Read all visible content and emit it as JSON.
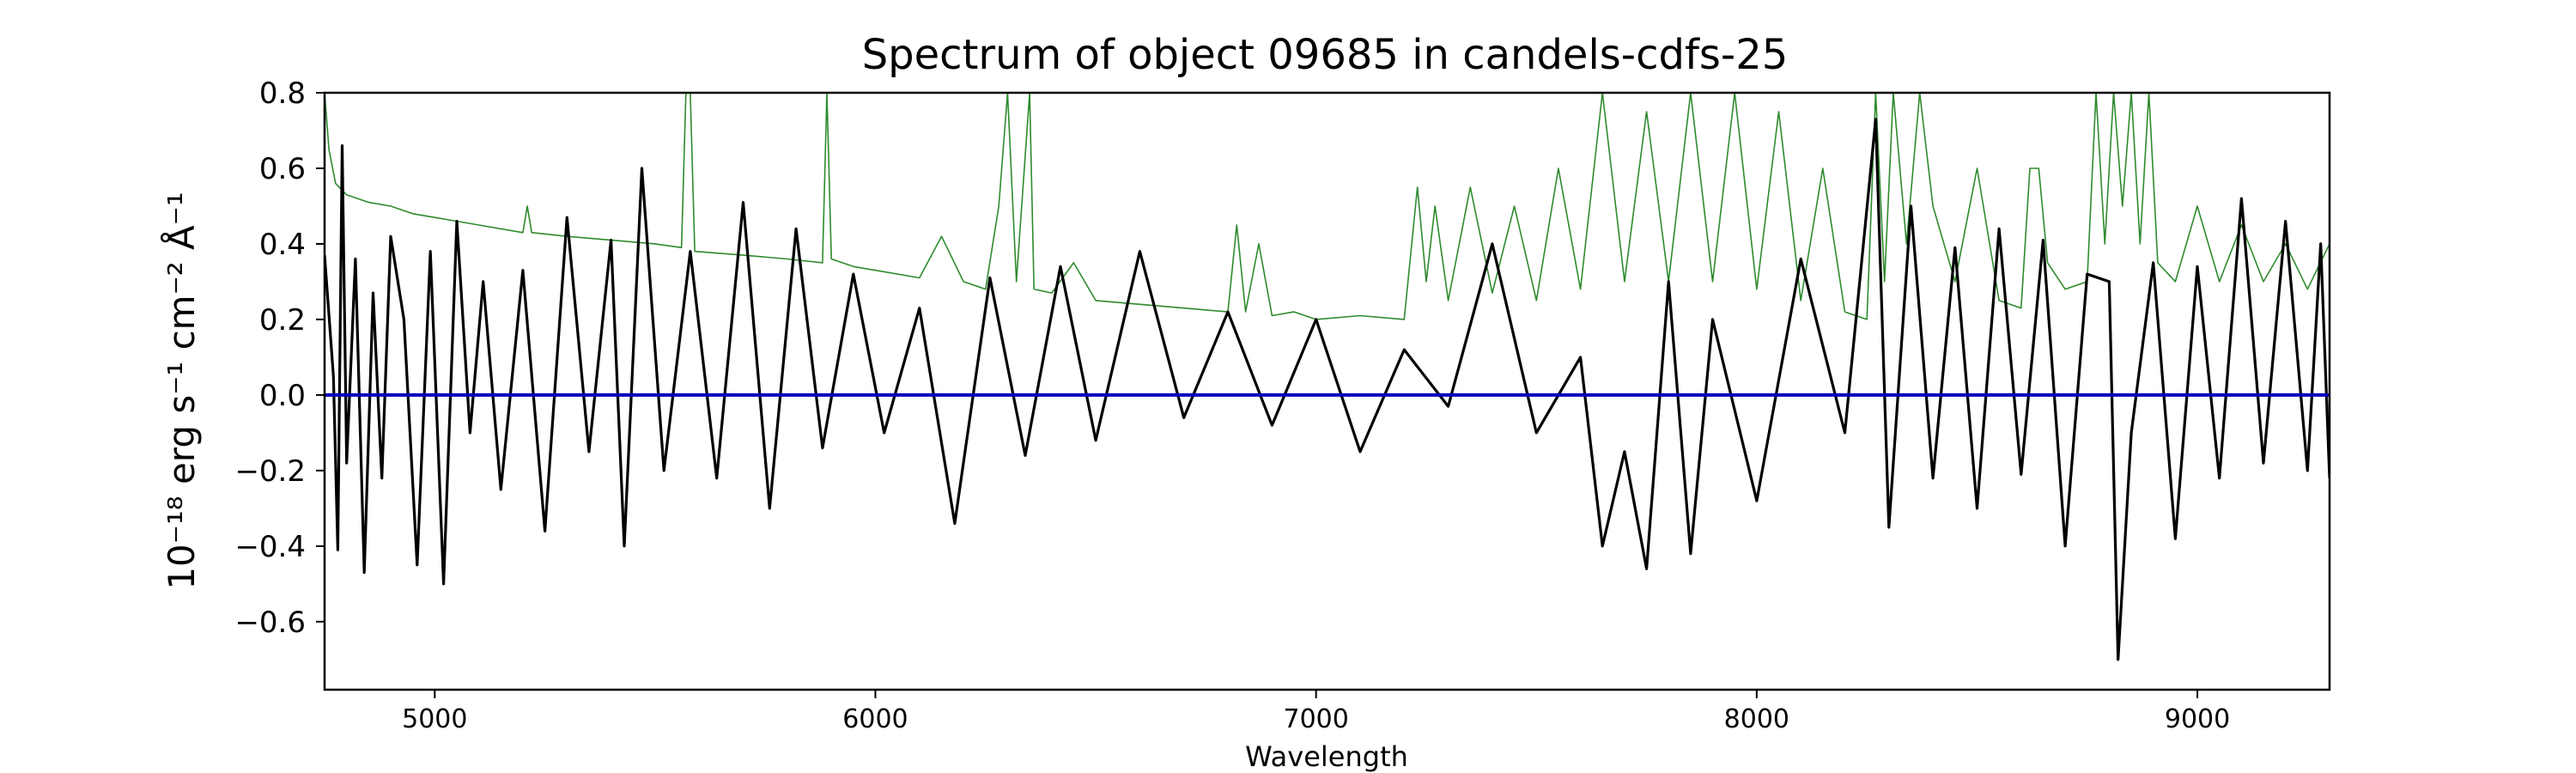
{
  "chart_data": {
    "type": "line",
    "title": "Spectrum of object 09685 in candels-cdfs-25",
    "xlabel": "Wavelength",
    "ylabel": "10⁻¹⁸ erg s⁻¹ cm⁻² Å⁻¹",
    "xlim": [
      4750,
      9300
    ],
    "ylim": [
      -0.78,
      0.8
    ],
    "xticks": [
      5000,
      6000,
      7000,
      8000,
      9000
    ],
    "xtick_labels": [
      "5000",
      "6000",
      "7000",
      "8000",
      "9000"
    ],
    "yticks": [
      -0.6,
      -0.4,
      -0.2,
      0.0,
      0.2,
      0.4,
      0.6,
      0.8
    ],
    "ytick_labels": [
      "−0.6",
      "−0.4",
      "−0.2",
      "0.0",
      "0.2",
      "0.4",
      "0.6",
      "0.8"
    ],
    "grid": false,
    "legend": "none",
    "series": [
      {
        "role": "flux",
        "color": "#000000",
        "line_width": 3.2,
        "x": [
          4750,
          4770,
          4780,
          4790,
          4800,
          4820,
          4840,
          4860,
          4880,
          4900,
          4930,
          4960,
          4990,
          5020,
          5050,
          5080,
          5110,
          5150,
          5200,
          5250,
          5300,
          5350,
          5400,
          5430,
          5470,
          5520,
          5580,
          5640,
          5700,
          5760,
          5820,
          5880,
          5950,
          6020,
          6100,
          6180,
          6260,
          6340,
          6420,
          6500,
          6600,
          6700,
          6800,
          6900,
          7000,
          7100,
          7200,
          7300,
          7400,
          7500,
          7600,
          7650,
          7700,
          7750,
          7800,
          7850,
          7900,
          8000,
          8100,
          8200,
          8270,
          8300,
          8350,
          8400,
          8450,
          8500,
          8550,
          8600,
          8650,
          8700,
          8750,
          8800,
          8820,
          8850,
          8900,
          8950,
          9000,
          9050,
          9100,
          9150,
          9200,
          9250,
          9280,
          9300
        ],
        "y": [
          0.37,
          0.05,
          -0.41,
          0.66,
          -0.18,
          0.36,
          -0.47,
          0.27,
          -0.22,
          0.42,
          0.2,
          -0.45,
          0.38,
          -0.5,
          0.46,
          -0.1,
          0.3,
          -0.25,
          0.33,
          -0.36,
          0.47,
          -0.15,
          0.41,
          -0.4,
          0.6,
          -0.2,
          0.38,
          -0.22,
          0.51,
          -0.3,
          0.44,
          -0.14,
          0.32,
          -0.1,
          0.23,
          -0.34,
          0.31,
          -0.16,
          0.34,
          -0.12,
          0.38,
          -0.06,
          0.22,
          -0.08,
          0.2,
          -0.15,
          0.12,
          -0.03,
          0.4,
          -0.1,
          0.1,
          -0.4,
          -0.15,
          -0.46,
          0.3,
          -0.42,
          0.2,
          -0.28,
          0.36,
          -0.1,
          0.73,
          -0.35,
          0.5,
          -0.22,
          0.39,
          -0.3,
          0.44,
          -0.21,
          0.41,
          -0.4,
          0.32,
          0.3,
          -0.7,
          -0.1,
          0.35,
          -0.38,
          0.34,
          -0.22,
          0.52,
          -0.18,
          0.46,
          -0.2,
          0.4,
          -0.22
        ]
      },
      {
        "role": "zero",
        "color": "#0000bb",
        "line_width": 4,
        "x": [
          4750,
          9300
        ],
        "y": [
          0.0,
          0.0
        ]
      },
      {
        "role": "error",
        "color": "#2e8b2e",
        "line_width": 1.6,
        "x": [
          4750,
          4760,
          4775,
          4800,
          4850,
          4900,
          4950,
          5000,
          5100,
          5200,
          5210,
          5220,
          5300,
          5400,
          5500,
          5560,
          5570,
          5580,
          5590,
          5700,
          5800,
          5880,
          5890,
          5900,
          5950,
          6000,
          6100,
          6150,
          6200,
          6250,
          6280,
          6300,
          6320,
          6350,
          6360,
          6400,
          6450,
          6500,
          6600,
          6700,
          6800,
          6820,
          6840,
          6870,
          6900,
          6950,
          7000,
          7100,
          7200,
          7230,
          7250,
          7270,
          7300,
          7350,
          7400,
          7450,
          7500,
          7550,
          7600,
          7650,
          7700,
          7750,
          7800,
          7850,
          7900,
          7950,
          8000,
          8050,
          8100,
          8150,
          8200,
          8250,
          8270,
          8290,
          8310,
          8340,
          8370,
          8400,
          8450,
          8500,
          8550,
          8600,
          8620,
          8640,
          8660,
          8700,
          8750,
          8770,
          8790,
          8810,
          8830,
          8850,
          8870,
          8890,
          8910,
          8950,
          9000,
          9050,
          9100,
          9150,
          9200,
          9250,
          9300
        ],
        "y": [
          0.8,
          0.65,
          0.56,
          0.53,
          0.51,
          0.5,
          0.48,
          0.47,
          0.45,
          0.43,
          0.5,
          0.43,
          0.42,
          0.41,
          0.4,
          0.39,
          0.8,
          0.8,
          0.38,
          0.37,
          0.36,
          0.35,
          0.8,
          0.36,
          0.34,
          0.33,
          0.31,
          0.42,
          0.3,
          0.28,
          0.5,
          0.8,
          0.3,
          0.8,
          0.28,
          0.27,
          0.35,
          0.25,
          0.24,
          0.23,
          0.22,
          0.45,
          0.22,
          0.4,
          0.21,
          0.22,
          0.2,
          0.21,
          0.2,
          0.55,
          0.3,
          0.5,
          0.25,
          0.55,
          0.27,
          0.5,
          0.25,
          0.6,
          0.28,
          0.8,
          0.3,
          0.75,
          0.3,
          0.8,
          0.3,
          0.8,
          0.28,
          0.75,
          0.25,
          0.6,
          0.22,
          0.2,
          0.8,
          0.3,
          0.8,
          0.4,
          0.8,
          0.5,
          0.3,
          0.6,
          0.25,
          0.23,
          0.6,
          0.6,
          0.35,
          0.28,
          0.3,
          0.8,
          0.4,
          0.8,
          0.5,
          0.8,
          0.4,
          0.8,
          0.35,
          0.3,
          0.5,
          0.3,
          0.45,
          0.3,
          0.4,
          0.28,
          0.4
        ]
      }
    ]
  }
}
